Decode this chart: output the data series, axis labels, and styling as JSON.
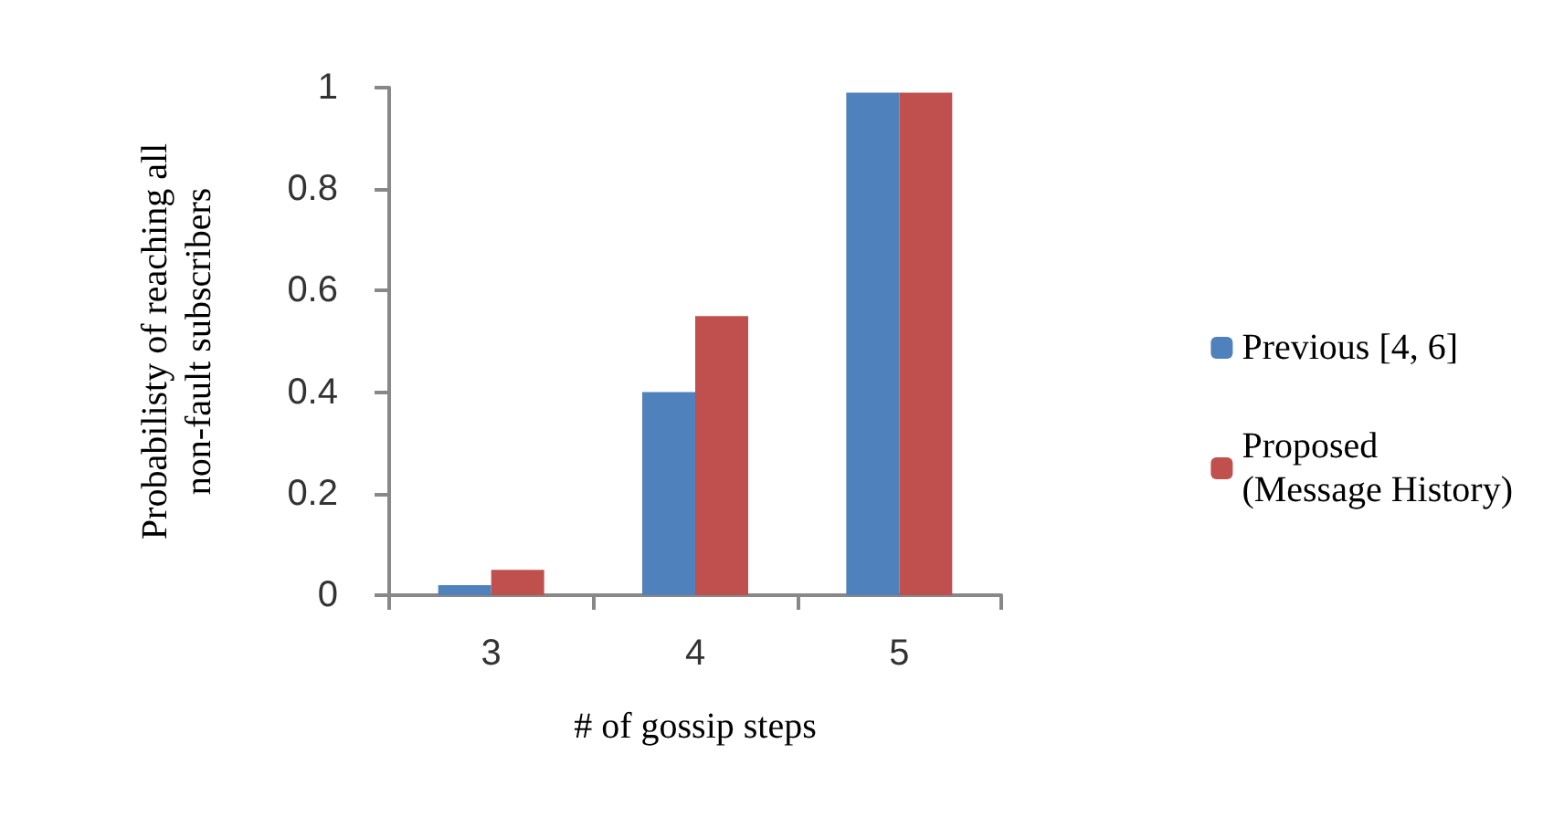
{
  "chart_data": {
    "type": "bar",
    "xlabel": "# of gossip steps",
    "ylabel": "Probabilisty of reaching all\nnon-fault subscribers",
    "categories": [
      "3",
      "4",
      "5"
    ],
    "series": [
      {
        "name": "Previous [4, 6]",
        "color": "#4f81bd",
        "values": [
          0.02,
          0.4,
          0.99
        ]
      },
      {
        "name": "Proposed\n(Message History)",
        "color": "#c0504d",
        "values": [
          0.05,
          0.55,
          0.99
        ]
      }
    ],
    "ylim": [
      0,
      1
    ],
    "yticks": [
      0,
      0.2,
      0.4,
      0.6,
      0.8,
      1
    ],
    "grid": false,
    "legend": "right"
  }
}
